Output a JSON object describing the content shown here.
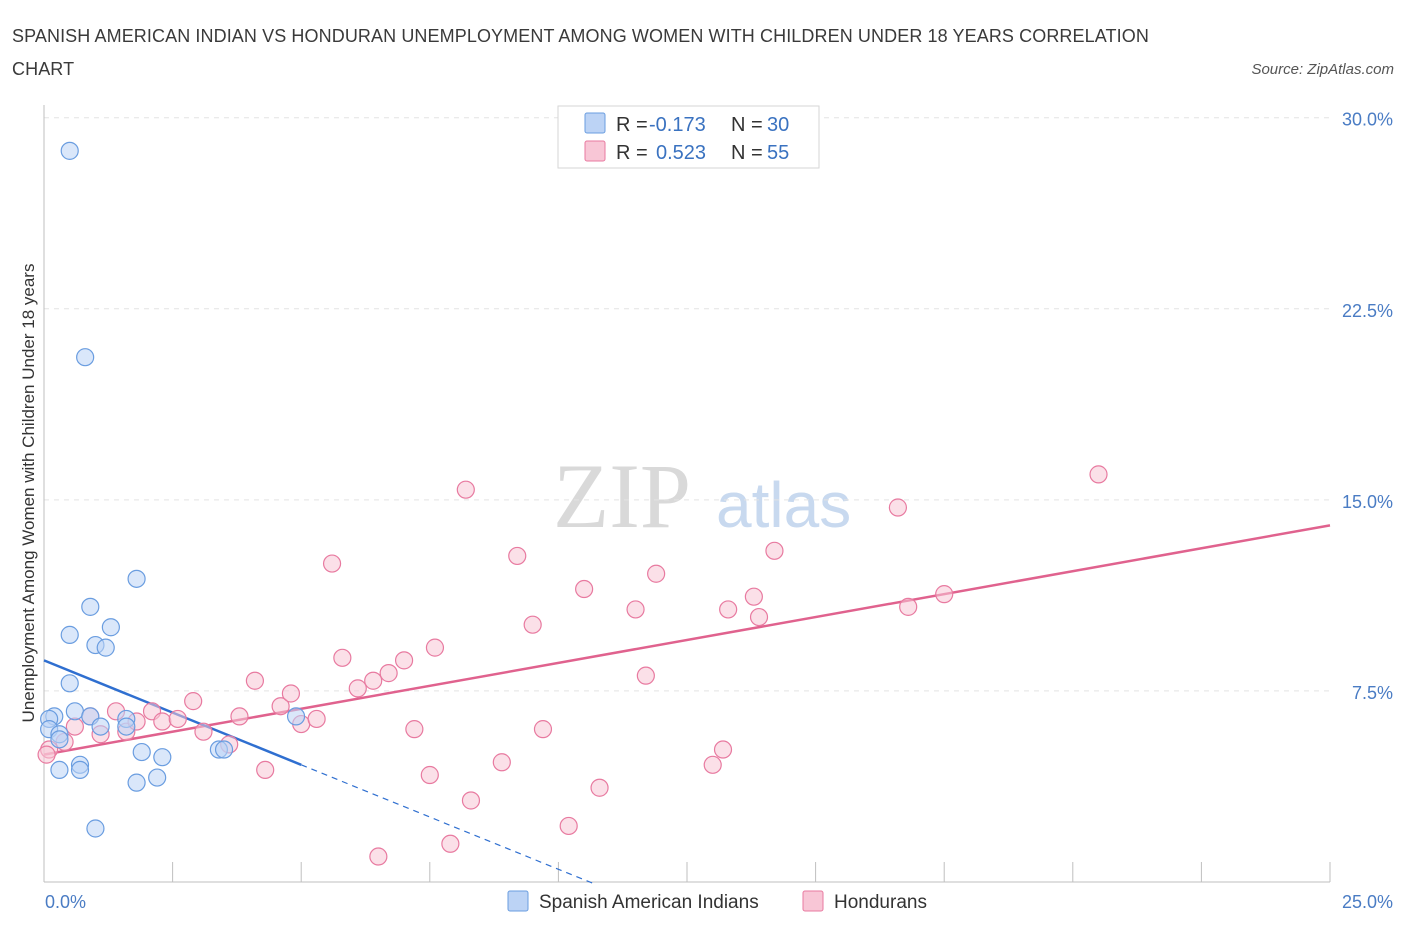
{
  "title": "SPANISH AMERICAN INDIAN VS HONDURAN UNEMPLOYMENT AMONG WOMEN WITH CHILDREN UNDER 18 YEARS CORRELATION CHART",
  "source": "Source: ZipAtlas.com",
  "watermark": {
    "zip": "ZIP",
    "atlas": "atlas"
  },
  "colors": {
    "blue": "#6a9de0",
    "blue_fill": "#bcd3f5",
    "blue_line": "#2f6fd0",
    "pink": "#e87aa0",
    "pink_fill": "#f8c6d6",
    "pink_line": "#e0628e",
    "grid": "#e3e3e3",
    "tick_label": "#4a7cc4"
  },
  "legend": {
    "rows": [
      {
        "r_label": "R =",
        "r_value": "-0.173",
        "n_label": "N =",
        "n_value": "30"
      },
      {
        "r_label": "R =",
        "r_value": "0.523",
        "n_label": "N =",
        "n_value": "55"
      }
    ]
  },
  "chart_data": {
    "type": "scatter",
    "title": "SPANISH AMERICAN INDIAN VS HONDURAN UNEMPLOYMENT AMONG WOMEN WITH CHILDREN UNDER 18 YEARS CORRELATION CHART",
    "xlabel": "",
    "ylabel": "Unemployment Among Women with Children Under 18 years",
    "xlim": [
      0,
      25
    ],
    "ylim": [
      0,
      30.5
    ],
    "x_ticks_labels": [
      "0.0%",
      "25.0%"
    ],
    "y_ticks": [
      7.5,
      15.0,
      22.5,
      30.0
    ],
    "y_tick_labels": [
      "7.5%",
      "15.0%",
      "22.5%",
      "30.0%"
    ],
    "series": [
      {
        "name": "Spanish American Indians",
        "R": -0.173,
        "N": 30,
        "trend": {
          "x0": 0,
          "y0": 8.7,
          "x1": 5.0,
          "y1": 4.6,
          "dashed_to_x": 10.7
        },
        "points": [
          [
            0.5,
            28.7
          ],
          [
            0.8,
            20.6
          ],
          [
            1.8,
            11.9
          ],
          [
            0.9,
            10.8
          ],
          [
            1.3,
            10.0
          ],
          [
            0.5,
            9.7
          ],
          [
            1.0,
            9.3
          ],
          [
            1.2,
            9.2
          ],
          [
            0.5,
            7.8
          ],
          [
            0.6,
            6.7
          ],
          [
            0.2,
            6.5
          ],
          [
            0.1,
            6.4
          ],
          [
            0.9,
            6.5
          ],
          [
            1.6,
            6.4
          ],
          [
            1.6,
            6.1
          ],
          [
            0.1,
            6.0
          ],
          [
            0.3,
            5.8
          ],
          [
            0.3,
            5.6
          ],
          [
            1.1,
            6.1
          ],
          [
            1.9,
            5.1
          ],
          [
            2.3,
            4.9
          ],
          [
            0.7,
            4.6
          ],
          [
            0.3,
            4.4
          ],
          [
            0.7,
            4.4
          ],
          [
            2.2,
            4.1
          ],
          [
            1.8,
            3.9
          ],
          [
            3.4,
            5.2
          ],
          [
            3.5,
            5.2
          ],
          [
            4.9,
            6.5
          ],
          [
            1.0,
            2.1
          ]
        ]
      },
      {
        "name": "Hondurans",
        "R": 0.523,
        "N": 55,
        "trend": {
          "x0": 0,
          "y0": 5.0,
          "x1": 25.0,
          "y1": 14.0
        },
        "points": [
          [
            0.1,
            5.2
          ],
          [
            0.4,
            5.5
          ],
          [
            0.6,
            6.1
          ],
          [
            0.9,
            6.5
          ],
          [
            1.1,
            5.8
          ],
          [
            1.4,
            6.7
          ],
          [
            1.6,
            5.9
          ],
          [
            1.8,
            6.3
          ],
          [
            2.1,
            6.7
          ],
          [
            2.3,
            6.3
          ],
          [
            2.6,
            6.4
          ],
          [
            2.9,
            7.1
          ],
          [
            3.1,
            5.9
          ],
          [
            3.6,
            5.4
          ],
          [
            3.8,
            6.5
          ],
          [
            4.1,
            7.9
          ],
          [
            4.3,
            4.4
          ],
          [
            4.6,
            6.9
          ],
          [
            4.8,
            7.4
          ],
          [
            5.0,
            6.2
          ],
          [
            5.3,
            6.4
          ],
          [
            5.6,
            12.5
          ],
          [
            5.8,
            8.8
          ],
          [
            6.1,
            7.6
          ],
          [
            6.4,
            7.9
          ],
          [
            6.5,
            1.0
          ],
          [
            6.7,
            8.2
          ],
          [
            7.0,
            8.7
          ],
          [
            7.2,
            6.0
          ],
          [
            7.5,
            4.2
          ],
          [
            7.6,
            9.2
          ],
          [
            7.9,
            1.5
          ],
          [
            8.2,
            15.4
          ],
          [
            8.3,
            3.2
          ],
          [
            8.9,
            4.7
          ],
          [
            9.2,
            12.8
          ],
          [
            9.5,
            10.1
          ],
          [
            9.7,
            6.0
          ],
          [
            10.2,
            2.2
          ],
          [
            10.5,
            11.5
          ],
          [
            10.8,
            3.7
          ],
          [
            11.5,
            10.7
          ],
          [
            11.7,
            8.1
          ],
          [
            11.9,
            12.1
          ],
          [
            13.0,
            4.6
          ],
          [
            13.2,
            5.2
          ],
          [
            13.3,
            10.7
          ],
          [
            13.8,
            11.2
          ],
          [
            13.9,
            10.4
          ],
          [
            14.2,
            13.0
          ],
          [
            16.6,
            14.7
          ],
          [
            16.8,
            10.8
          ],
          [
            17.5,
            11.3
          ],
          [
            20.5,
            16.0
          ],
          [
            0.05,
            5.0
          ]
        ]
      }
    ],
    "bottom_legend": [
      "Spanish American Indians",
      "Hondurans"
    ]
  }
}
